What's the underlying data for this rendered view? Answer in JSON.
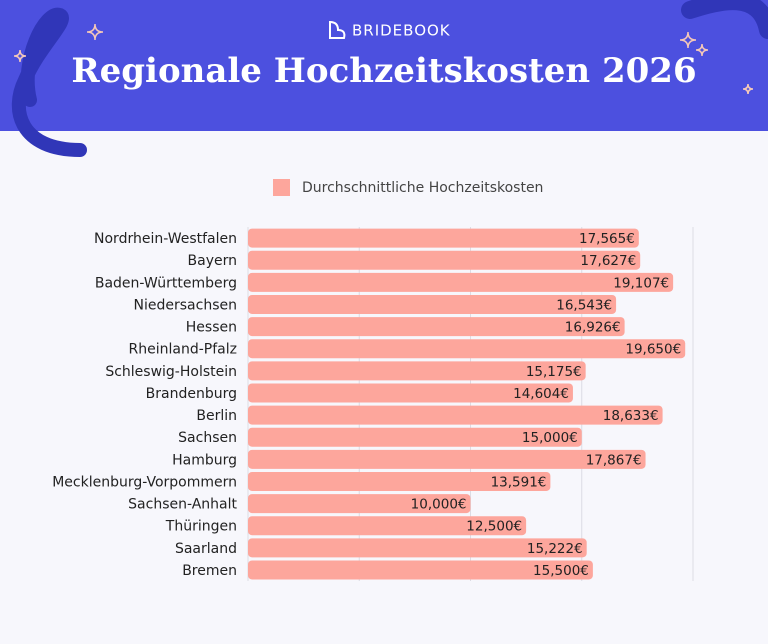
{
  "brand": "BRIDEBOOK",
  "chart_data": {
    "type": "bar",
    "orientation": "horizontal",
    "title": "Regionale Hochzeitskosten 2026",
    "categories": [
      "Nordrhein-Westfalen",
      "Bayern",
      "Baden-Württemberg",
      "Niedersachsen",
      "Hessen",
      "Rheinland-Pfalz",
      "Schleswig-Holstein",
      "Brandenburg",
      "Berlin",
      "Sachsen",
      "Hamburg",
      "Mecklenburg-Vorpommern",
      "Sachsen-Anhalt",
      "Thüringen",
      "Saarland",
      "Bremen"
    ],
    "series": [
      {
        "name": "Durchschnittliche Hochzeitskosten",
        "color": "#fda69c",
        "values": [
          17565,
          17627,
          19107,
          16543,
          16926,
          19650,
          15175,
          14604,
          18633,
          15000,
          17867,
          13591,
          10000,
          12500,
          15222,
          15500
        ],
        "value_labels": [
          "17,565€",
          "17,627€",
          "19,107€",
          "16,543€",
          "16,926€",
          "19,650€",
          "15,175€",
          "14,604€",
          "18,633€",
          "15,000€",
          "17,867€",
          "13,591€",
          "10,000€",
          "12,500€",
          "15,222€",
          "15,500€"
        ]
      }
    ],
    "xlim": [
      0,
      20000
    ],
    "xticks": [
      0,
      5000,
      10000,
      15000,
      20000
    ],
    "grid": true,
    "legend": "top"
  }
}
